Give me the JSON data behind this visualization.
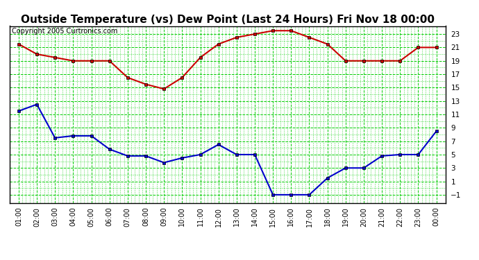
{
  "title": "Outside Temperature (vs) Dew Point (Last 24 Hours) Fri Nov 18 00:00",
  "copyright": "Copyright 2005 Curtronics.com",
  "x_labels": [
    "01:00",
    "02:00",
    "03:00",
    "04:00",
    "05:00",
    "06:00",
    "07:00",
    "08:00",
    "09:00",
    "10:00",
    "11:00",
    "12:00",
    "13:00",
    "14:00",
    "15:00",
    "16:00",
    "17:00",
    "18:00",
    "19:00",
    "20:00",
    "21:00",
    "22:00",
    "23:00",
    "00:00"
  ],
  "temp_data": [
    21.5,
    20.0,
    19.5,
    19.0,
    19.0,
    19.0,
    16.5,
    15.5,
    14.8,
    16.5,
    19.5,
    21.5,
    22.5,
    23.0,
    23.5,
    23.5,
    22.5,
    21.5,
    19.0,
    19.0,
    19.0,
    19.0,
    21.0,
    21.0
  ],
  "dew_data": [
    11.5,
    12.5,
    7.5,
    7.8,
    7.8,
    5.8,
    4.8,
    4.8,
    3.8,
    4.5,
    5.0,
    6.5,
    5.0,
    5.0,
    -1.0,
    -1.0,
    -1.0,
    1.5,
    3.0,
    3.0,
    4.8,
    5.0,
    5.0,
    8.5
  ],
  "temp_color": "#cc0000",
  "dew_color": "#0000cc",
  "bg_color": "#ffffff",
  "plot_bg_color": "#ffffff",
  "grid_color": "#00cc00",
  "ylim_min": -2.0,
  "ylim_max": 24.0,
  "yticks": [
    -1.0,
    1.0,
    3.0,
    5.0,
    7.0,
    9.0,
    11.0,
    13.0,
    15.0,
    17.0,
    19.0,
    21.0,
    23.0
  ],
  "title_fontsize": 11,
  "copyright_fontsize": 7,
  "fig_width": 6.9,
  "fig_height": 3.75,
  "dpi": 100
}
